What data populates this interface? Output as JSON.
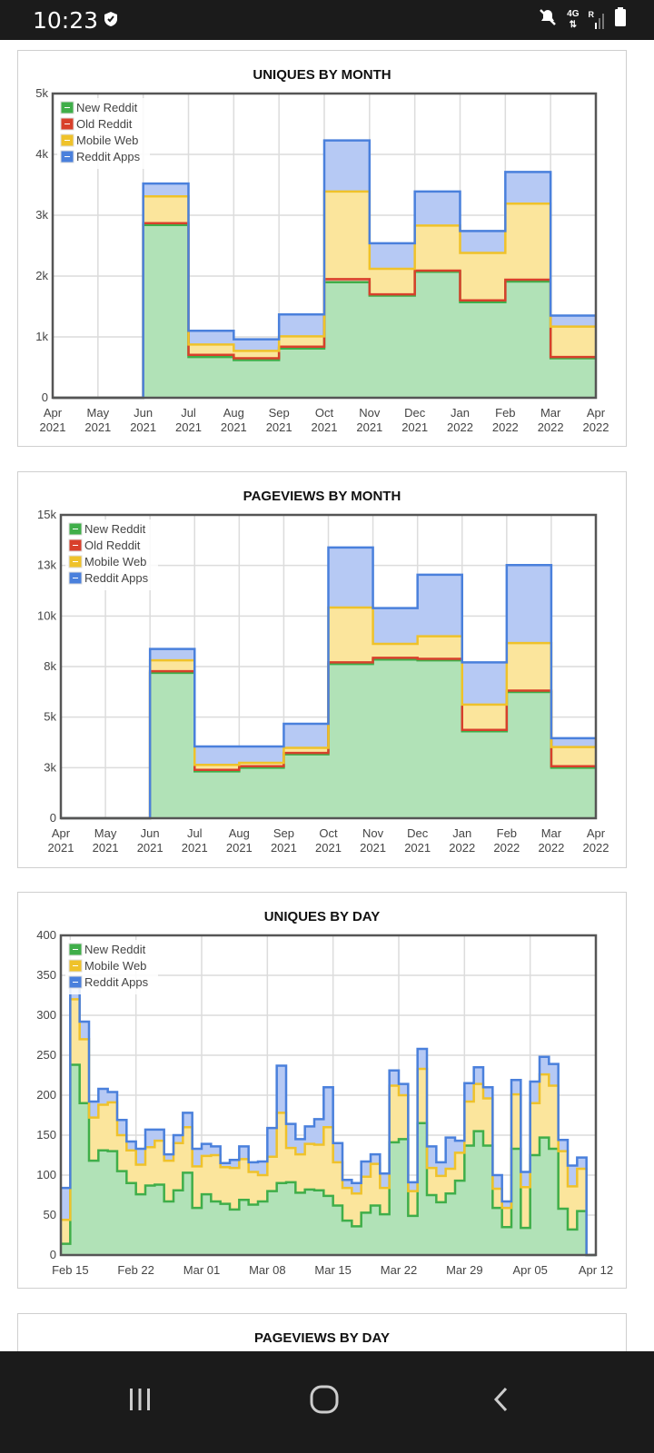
{
  "status_bar": {
    "time": "10:23",
    "network": "4G",
    "roaming": "R"
  },
  "colors": {
    "new_reddit": {
      "line": "#3fae49",
      "fill": "#b1e2b7"
    },
    "old_reddit": {
      "line": "#d8402b",
      "fill": "#f3b3a8"
    },
    "mobile_web": {
      "line": "#efc22a",
      "fill": "#fbe59c"
    },
    "reddit_apps": {
      "line": "#4a80dc",
      "fill": "#b6c9f4"
    }
  },
  "chart_data": [
    {
      "type": "area",
      "stacked": true,
      "step": true,
      "title": "UNIQUES BY MONTH",
      "xtick_labels": [
        [
          "Apr",
          "2021"
        ],
        [
          "May",
          "2021"
        ],
        [
          "Jun",
          "2021"
        ],
        [
          "Jul",
          "2021"
        ],
        [
          "Aug",
          "2021"
        ],
        [
          "Sep",
          "2021"
        ],
        [
          "Oct",
          "2021"
        ],
        [
          "Nov",
          "2021"
        ],
        [
          "Dec",
          "2021"
        ],
        [
          "Jan",
          "2022"
        ],
        [
          "Feb",
          "2022"
        ],
        [
          "Mar",
          "2022"
        ],
        [
          "Apr",
          "2022"
        ]
      ],
      "categories": [
        "Apr 2021",
        "May 2021",
        "Jun 2021",
        "Jul 2021",
        "Aug 2021",
        "Sep 2021",
        "Oct 2021",
        "Nov 2021",
        "Dec 2021",
        "Jan 2022",
        "Feb 2022",
        "Mar 2022"
      ],
      "ylim": [
        0,
        5000
      ],
      "yticks": [
        0,
        1000,
        2000,
        3000,
        4000,
        5000
      ],
      "ytick_labels": [
        "0",
        "1k",
        "2k",
        "3k",
        "4k",
        "5k"
      ],
      "grid": true,
      "legend": "top-left",
      "series": [
        {
          "name": "New Reddit",
          "key": "new_reddit",
          "values": [
            0,
            0,
            2840,
            670,
            620,
            810,
            1900,
            1680,
            2070,
            1570,
            1910,
            650
          ]
        },
        {
          "name": "Old Reddit",
          "key": "old_reddit",
          "values": [
            0,
            0,
            30,
            35,
            30,
            30,
            50,
            20,
            20,
            30,
            30,
            20
          ]
        },
        {
          "name": "Mobile Web",
          "key": "mobile_web",
          "values": [
            0,
            0,
            440,
            170,
            120,
            170,
            1440,
            420,
            740,
            780,
            1250,
            500
          ]
        },
        {
          "name": "Reddit Apps",
          "key": "reddit_apps",
          "values": [
            0,
            0,
            210,
            225,
            190,
            360,
            840,
            420,
            560,
            360,
            520,
            180
          ]
        }
      ]
    },
    {
      "type": "area",
      "stacked": true,
      "step": true,
      "title": "PAGEVIEWS BY MONTH",
      "xtick_labels": [
        [
          "Apr",
          "2021"
        ],
        [
          "May",
          "2021"
        ],
        [
          "Jun",
          "2021"
        ],
        [
          "Jul",
          "2021"
        ],
        [
          "Aug",
          "2021"
        ],
        [
          "Sep",
          "2021"
        ],
        [
          "Oct",
          "2021"
        ],
        [
          "Nov",
          "2021"
        ],
        [
          "Dec",
          "2021"
        ],
        [
          "Jan",
          "2022"
        ],
        [
          "Feb",
          "2022"
        ],
        [
          "Mar",
          "2022"
        ],
        [
          "Apr",
          "2022"
        ]
      ],
      "categories": [
        "Apr 2021",
        "May 2021",
        "Jun 2021",
        "Jul 2021",
        "Aug 2021",
        "Sep 2021",
        "Oct 2021",
        "Nov 2021",
        "Dec 2021",
        "Jan 2022",
        "Feb 2022",
        "Mar 2022"
      ],
      "ylim": [
        0,
        15000
      ],
      "yticks": [
        0,
        2500,
        5000,
        7500,
        10000,
        12500,
        15000
      ],
      "ytick_labels": [
        "0",
        "3k",
        "5k",
        "8k",
        "10k",
        "13k",
        "15k"
      ],
      "grid": true,
      "legend": "top-left",
      "series": [
        {
          "name": "New Reddit",
          "key": "new_reddit",
          "values": [
            0,
            0,
            7190,
            2320,
            2500,
            3160,
            7630,
            7850,
            7810,
            4300,
            6240,
            2500
          ]
        },
        {
          "name": "Old Reddit",
          "key": "old_reddit",
          "values": [
            0,
            0,
            80,
            70,
            70,
            70,
            80,
            80,
            70,
            70,
            70,
            70
          ]
        },
        {
          "name": "Mobile Web",
          "key": "mobile_web",
          "values": [
            0,
            0,
            540,
            250,
            170,
            250,
            2710,
            690,
            1120,
            1250,
            2350,
            950
          ]
        },
        {
          "name": "Reddit Apps",
          "key": "reddit_apps",
          "values": [
            0,
            0,
            560,
            910,
            810,
            1190,
            2970,
            1770,
            3040,
            2090,
            3860,
            440
          ]
        }
      ]
    },
    {
      "type": "area",
      "stacked": true,
      "step": true,
      "title": "UNIQUES BY DAY",
      "xtick_labels": [
        [
          "Feb 15"
        ],
        [
          "Feb 22"
        ],
        [
          "Mar 01"
        ],
        [
          "Mar 08"
        ],
        [
          "Mar 15"
        ],
        [
          "Mar 22"
        ],
        [
          "Mar 29"
        ],
        [
          "Apr 05"
        ],
        [
          "Apr 12"
        ]
      ],
      "categories": [
        "Feb 14",
        "Feb 15",
        "Feb 16",
        "Feb 17",
        "Feb 18",
        "Feb 19",
        "Feb 20",
        "Feb 21",
        "Feb 22",
        "Feb 23",
        "Feb 24",
        "Feb 25",
        "Feb 26",
        "Feb 27",
        "Feb 28",
        "Mar 01",
        "Mar 02",
        "Mar 03",
        "Mar 04",
        "Mar 05",
        "Mar 06",
        "Mar 07",
        "Mar 08",
        "Mar 09",
        "Mar 10",
        "Mar 11",
        "Mar 12",
        "Mar 13",
        "Mar 14",
        "Mar 15",
        "Mar 16",
        "Mar 17",
        "Mar 18",
        "Mar 19",
        "Mar 20",
        "Mar 21",
        "Mar 22",
        "Mar 23",
        "Mar 24",
        "Mar 25",
        "Mar 26",
        "Mar 27",
        "Mar 28",
        "Mar 29",
        "Mar 30",
        "Mar 31",
        "Apr 01",
        "Apr 02",
        "Apr 03",
        "Apr 04",
        "Apr 05",
        "Apr 06",
        "Apr 07",
        "Apr 08",
        "Apr 09",
        "Apr 10",
        "Apr 11"
      ],
      "ylim": [
        0,
        400
      ],
      "yticks": [
        0,
        50,
        100,
        150,
        200,
        250,
        300,
        350,
        400
      ],
      "ytick_labels": [
        "0",
        "50",
        "100",
        "150",
        "200",
        "250",
        "300",
        "350",
        "400"
      ],
      "grid": true,
      "legend": "top-left",
      "series": [
        {
          "name": "New Reddit",
          "key": "new_reddit",
          "values": [
            14,
            238,
            190,
            118,
            131,
            130,
            105,
            90,
            76,
            87,
            88,
            67,
            81,
            103,
            59,
            76,
            67,
            64,
            57,
            69,
            63,
            67,
            80,
            90,
            91,
            78,
            82,
            81,
            74,
            62,
            43,
            36,
            53,
            62,
            51,
            141,
            145,
            49,
            165,
            75,
            66,
            77,
            93,
            137,
            155,
            137,
            59,
            35,
            133,
            34,
            125,
            147,
            133,
            58,
            32,
            55,
            0
          ]
        },
        {
          "name": "Mobile Web",
          "key": "mobile_web",
          "values": [
            30,
            82,
            80,
            54,
            57,
            61,
            45,
            41,
            37,
            48,
            55,
            51,
            59,
            57,
            52,
            48,
            58,
            46,
            52,
            51,
            41,
            33,
            43,
            88,
            43,
            48,
            57,
            57,
            86,
            54,
            41,
            41,
            45,
            52,
            33,
            71,
            55,
            31,
            68,
            34,
            33,
            31,
            35,
            55,
            59,
            59,
            24,
            24,
            68,
            51,
            65,
            79,
            79,
            72,
            54,
            53,
            0
          ]
        },
        {
          "name": "Reddit Apps",
          "key": "reddit_apps",
          "values": [
            40,
            15,
            22,
            20,
            20,
            13,
            19,
            11,
            20,
            22,
            14,
            8,
            10,
            18,
            22,
            15,
            11,
            5,
            10,
            16,
            12,
            17,
            36,
            59,
            30,
            19,
            22,
            32,
            50,
            24,
            10,
            13,
            19,
            12,
            18,
            19,
            14,
            11,
            25,
            27,
            17,
            39,
            15,
            23,
            21,
            14,
            17,
            8,
            18,
            19,
            27,
            22,
            27,
            14,
            26,
            14,
            0
          ]
        }
      ]
    }
  ],
  "next_card": {
    "title": "PAGEVIEWS BY DAY"
  }
}
